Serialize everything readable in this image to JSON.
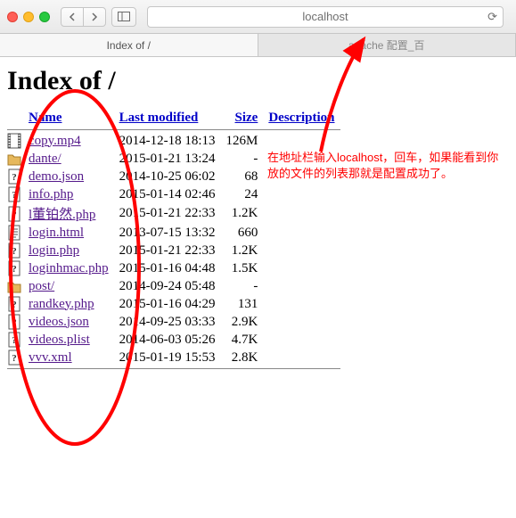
{
  "address_bar": {
    "text": "localhost"
  },
  "tabs": {
    "active": "Index of /",
    "other": "apache 配置_百"
  },
  "page": {
    "heading": "Index of /",
    "columns": {
      "name": "Name",
      "modified": "Last modified",
      "size": "Size",
      "desc": "Description"
    },
    "rows": [
      {
        "icon": "video",
        "name": "copy.mp4",
        "modified": "2014-12-18 18:13",
        "size": "126M"
      },
      {
        "icon": "folder",
        "name": "dante/",
        "modified": "2015-01-21 13:24",
        "size": "-"
      },
      {
        "icon": "unknown",
        "name": "demo.json",
        "modified": "2014-10-25 06:02",
        "size": "68"
      },
      {
        "icon": "unknown",
        "name": "info.php",
        "modified": "2015-01-14 02:46",
        "size": "24"
      },
      {
        "icon": "unknown",
        "name": "l董铂然.php",
        "modified": "2015-01-21 22:33",
        "size": "1.2K"
      },
      {
        "icon": "text",
        "name": "login.html",
        "modified": "2013-07-15 13:32",
        "size": "660"
      },
      {
        "icon": "unknown",
        "name": "login.php",
        "modified": "2015-01-21 22:33",
        "size": "1.2K"
      },
      {
        "icon": "unknown",
        "name": "loginhmac.php",
        "modified": "2015-01-16 04:48",
        "size": "1.5K"
      },
      {
        "icon": "folder",
        "name": "post/",
        "modified": "2014-09-24 05:48",
        "size": "-"
      },
      {
        "icon": "unknown",
        "name": "randkey.php",
        "modified": "2015-01-16 04:29",
        "size": "131"
      },
      {
        "icon": "unknown",
        "name": "videos.json",
        "modified": "2014-09-25 03:33",
        "size": "2.9K"
      },
      {
        "icon": "unknown",
        "name": "videos.plist",
        "modified": "2014-06-03 05:26",
        "size": "4.7K"
      },
      {
        "icon": "unknown",
        "name": "vvv.xml",
        "modified": "2015-01-19 15:53",
        "size": "2.8K"
      }
    ]
  },
  "annotation": {
    "text": "在地址栏输入localhost，回车，如果能看到你放的文件的列表那就是配置成功了。",
    "color": "#ff0000",
    "arrow_color": "#ff0000",
    "ellipse_color": "#ff0000"
  },
  "icons_svg": {
    "video": "<svg class='file-ico' viewBox='0 0 16 18'><rect x='1' y='1' width='14' height='16' fill='#fff' stroke='#555'/><rect x='1' y='1' width='3' height='16' fill='#555'/><rect x='12' y='1' width='3' height='16' fill='#555'/><rect x='1.5' y='2' width='2' height='1.5' fill='#fff'/><rect x='1.5' y='5' width='2' height='1.5' fill='#fff'/><rect x='1.5' y='8' width='2' height='1.5' fill='#fff'/><rect x='1.5' y='11' width='2' height='1.5' fill='#fff'/><rect x='1.5' y='14' width='2' height='1.5' fill='#fff'/><rect x='12.5' y='2' width='2' height='1.5' fill='#fff'/><rect x='12.5' y='5' width='2' height='1.5' fill='#fff'/><rect x='12.5' y='8' width='2' height='1.5' fill='#fff'/><rect x='12.5' y='11' width='2' height='1.5' fill='#fff'/><rect x='12.5' y='14' width='2' height='1.5' fill='#fff'/></svg>",
    "folder": "<svg class='file-ico' viewBox='0 0 16 18'><path d='M1 5 h5 l2 2 h7 v9 h-14 z' fill='#e6b85c' stroke='#a87d2a'/><path d='M1 5 h5 l2 2 h7' fill='none' stroke='#a87d2a'/></svg>",
    "unknown": "<svg class='file-ico' viewBox='0 0 16 18'><rect x='2' y='1' width='12' height='16' fill='#fff' stroke='#555'/><text x='8' y='13' text-anchor='middle' font-size='11' font-family='serif' fill='#333' font-weight='bold'>?</text></svg>",
    "text": "<svg class='file-ico' viewBox='0 0 16 18'><rect x='2' y='1' width='12' height='16' fill='#fff' stroke='#555'/><line x1='4' y1='5' x2='12' y2='5' stroke='#555'/><line x1='4' y1='8' x2='12' y2='8' stroke='#555'/><line x1='4' y1='11' x2='12' y2='11' stroke='#555'/><line x1='4' y1='14' x2='10' y2='14' stroke='#555'/></svg>"
  }
}
